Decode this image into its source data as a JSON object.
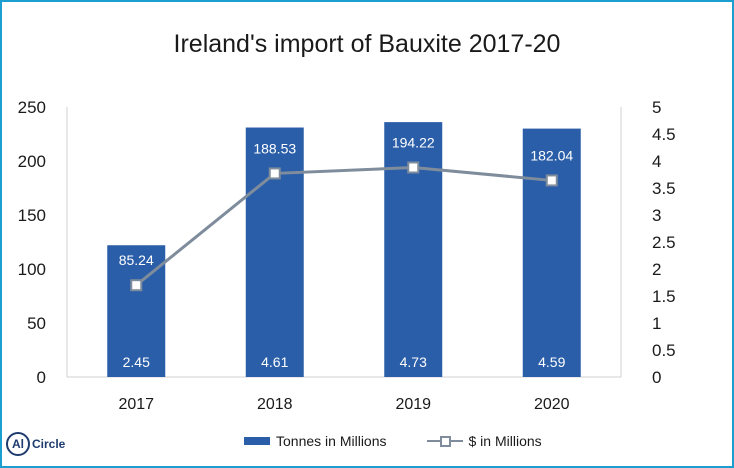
{
  "title": "Ireland's import of Bauxite 2017-20",
  "legend": {
    "bar_label": "Tonnes in Millions",
    "line_label": "$ in Millions"
  },
  "logo": {
    "text": "Circle",
    "mark": "Al"
  },
  "colors": {
    "bar": "#2b5ea8",
    "line": "#7f8c9c",
    "frame": "#1a9fd0"
  },
  "chart_data": {
    "type": "bar",
    "categories": [
      "2017",
      "2018",
      "2019",
      "2020"
    ],
    "series": [
      {
        "name": "Tonnes in Millions",
        "type": "bar",
        "axis": "left",
        "values": [
          122,
          231,
          236,
          230
        ]
      },
      {
        "name": "$ in Millions",
        "type": "line",
        "axis": "right",
        "values": [
          1.7,
          3.77,
          3.88,
          3.64
        ]
      }
    ],
    "bar_labels": [
      "2.45",
      "4.61",
      "4.73",
      "4.59"
    ],
    "line_labels": [
      "85.24",
      "188.53",
      "194.22",
      "182.04"
    ],
    "ylim_left": [
      0,
      250
    ],
    "yticks_left": [
      "0",
      "50",
      "100",
      "150",
      "200",
      "250"
    ],
    "ylim_right": [
      0,
      5
    ],
    "yticks_right": [
      "0",
      "0.5",
      "1",
      "1.5",
      "2",
      "2.5",
      "3",
      "3.5",
      "4",
      "4.5",
      "5"
    ],
    "grid": false,
    "legend_position": "bottom"
  }
}
